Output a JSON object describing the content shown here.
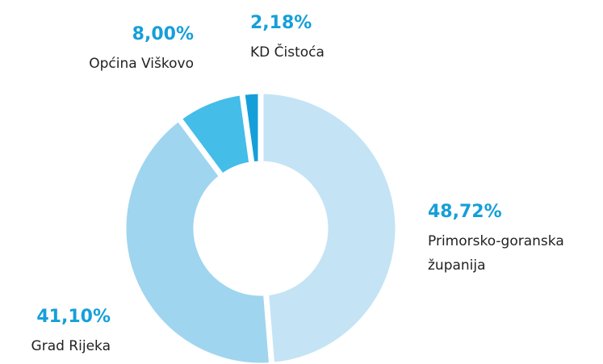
{
  "chart_data": {
    "type": "donut",
    "categories": [
      "Primorsko-goranska županija",
      "Grad Rijeka",
      "Općina Viškovo",
      "KD Čistoća"
    ],
    "values": [
      48.72,
      41.1,
      8.0,
      2.18
    ],
    "value_labels": [
      "48,72%",
      "41,10%",
      "8,00%",
      "2,18%"
    ],
    "colors": [
      "#c4e4f5",
      "#9fd5ef",
      "#44bde8",
      "#159fd9"
    ]
  }
}
